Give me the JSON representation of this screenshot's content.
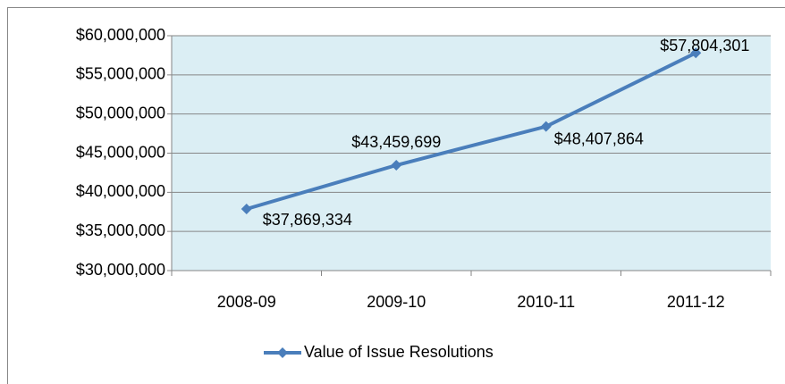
{
  "chart_data": {
    "type": "line",
    "categories": [
      "2008-09",
      "2009-10",
      "2010-11",
      "2011-12"
    ],
    "series": [
      {
        "name": "Value of Issue Resolutions",
        "color": "#4a7ebb",
        "values": [
          37869334,
          43459699,
          48407864,
          57804301
        ],
        "value_labels": [
          "$37,869,334",
          "$43,459,699",
          "$48,407,864",
          "$57,804,301"
        ]
      }
    ],
    "ylim": [
      30000000,
      60000000
    ],
    "yticks": [
      {
        "value": 30000000,
        "label": "$30,000,000"
      },
      {
        "value": 35000000,
        "label": "$35,000,000"
      },
      {
        "value": 40000000,
        "label": "$40,000,000"
      },
      {
        "value": 45000000,
        "label": "$45,000,000"
      },
      {
        "value": 50000000,
        "label": "$50,000,000"
      },
      {
        "value": 55000000,
        "label": "$55,000,000"
      },
      {
        "value": 60000000,
        "label": "$60,000,000"
      }
    ],
    "grid": true,
    "legend": "bottom",
    "plot_background": "#dbeef4"
  }
}
